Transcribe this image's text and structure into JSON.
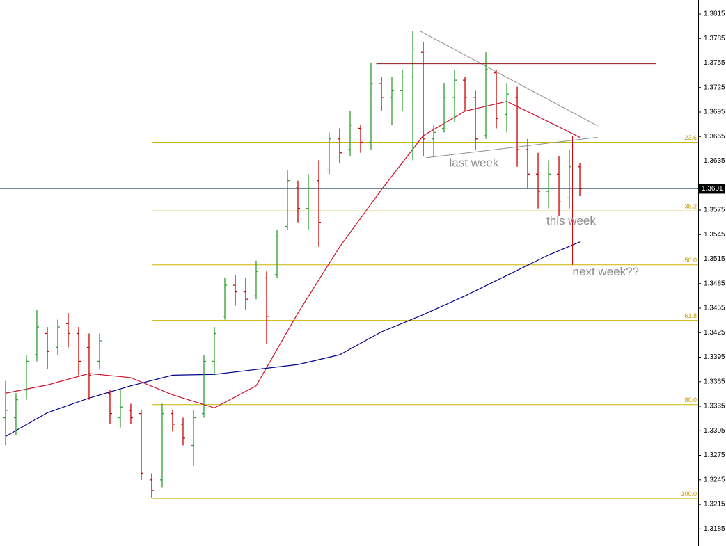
{
  "chart_data": {
    "type": "ohlc",
    "xlim": [
      -0.53,
      66.33
    ],
    "ylim": [
      1.3164,
      1.3832
    ],
    "yticks": [
      1.3185,
      1.3215,
      1.3245,
      1.3275,
      1.3305,
      1.3335,
      1.3365,
      1.3395,
      1.3425,
      1.3455,
      1.3485,
      1.3515,
      1.3545,
      1.3575,
      1.3635,
      1.3665,
      1.3695,
      1.3725,
      1.3755,
      1.3785,
      1.3815
    ],
    "up_color": "#2e9e2e",
    "down_color": "#cc0000",
    "bars": {
      "open": [
        1.3321,
        1.3321,
        1.3355,
        1.3398,
        1.3424,
        1.3407,
        1.3436,
        1.3424,
        1.3407,
        1.339,
        1.3351,
        1.3321,
        1.333,
        1.3326,
        1.3245,
        1.3245,
        1.3326,
        1.3313,
        1.3287,
        1.3326,
        1.339,
        1.3445,
        1.3483,
        1.3475,
        1.347,
        1.3492,
        1.3496,
        1.3555,
        1.3602,
        1.3577,
        1.3611,
        1.3624,
        1.3662,
        1.3649,
        1.3675,
        1.3658,
        1.373,
        1.3713,
        1.3721,
        1.3738,
        1.3768,
        1.3662,
        1.3675,
        1.3713,
        1.3734,
        1.3713,
        1.3666,
        1.3743,
        1.3692,
        1.3713,
        1.3649,
        1.3619,
        1.3598,
        1.3619,
        1.359,
        1.3628
      ],
      "high": [
        1.3366,
        1.3351,
        1.3398,
        1.3453,
        1.3432,
        1.3441,
        1.3449,
        1.3432,
        1.3424,
        1.3424,
        1.3355,
        1.3355,
        1.3338,
        1.333,
        1.3253,
        1.3338,
        1.333,
        1.3321,
        1.333,
        1.3398,
        1.3432,
        1.3492,
        1.3496,
        1.3492,
        1.3513,
        1.35,
        1.3551,
        1.3624,
        1.3611,
        1.3619,
        1.3636,
        1.367,
        1.3675,
        1.3696,
        1.3679,
        1.3755,
        1.3738,
        1.3738,
        1.3747,
        1.3794,
        1.3781,
        1.3679,
        1.373,
        1.3747,
        1.3738,
        1.3721,
        1.3768,
        1.3747,
        1.373,
        1.3726,
        1.3662,
        1.3645,
        1.3636,
        1.3641,
        1.3649,
        1.3632
      ],
      "low": [
        1.3287,
        1.33,
        1.3343,
        1.339,
        1.3381,
        1.3398,
        1.3407,
        1.3373,
        1.3343,
        1.3381,
        1.3313,
        1.3309,
        1.3313,
        1.3245,
        1.3223,
        1.3236,
        1.3304,
        1.3287,
        1.3262,
        1.3321,
        1.3373,
        1.3441,
        1.3458,
        1.3453,
        1.3466,
        1.3411,
        1.3492,
        1.3551,
        1.356,
        1.3551,
        1.353,
        1.3619,
        1.3632,
        1.3641,
        1.3645,
        1.3649,
        1.3696,
        1.3679,
        1.3696,
        1.3636,
        1.3641,
        1.3641,
        1.367,
        1.3683,
        1.3696,
        1.3649,
        1.3662,
        1.3675,
        1.367,
        1.3628,
        1.3601,
        1.3577,
        1.3577,
        1.3568,
        1.3577,
        1.3592
      ],
      "close": [
        1.333,
        1.3343,
        1.339,
        1.3432,
        1.3402,
        1.3432,
        1.3424,
        1.339,
        1.3373,
        1.3415,
        1.3326,
        1.3334,
        1.3321,
        1.3253,
        1.3232,
        1.3326,
        1.3313,
        1.3296,
        1.3321,
        1.339,
        1.3424,
        1.3483,
        1.3475,
        1.3466,
        1.35,
        1.3445,
        1.3543,
        1.3611,
        1.3577,
        1.3602,
        1.356,
        1.3662,
        1.3645,
        1.3679,
        1.3658,
        1.373,
        1.3713,
        1.3721,
        1.3738,
        1.3772,
        1.3662,
        1.367,
        1.3713,
        1.3734,
        1.3713,
        1.3662,
        1.3747,
        1.3687,
        1.3717,
        1.3649,
        1.3619,
        1.3598,
        1.3619,
        1.3585,
        1.3628,
        1.3601
      ]
    },
    "moving_averages": [
      {
        "color": "#d0102a",
        "x": [
          0,
          4,
          8,
          12,
          16,
          20,
          24,
          28,
          32,
          36,
          40,
          44,
          48,
          52,
          55
        ],
        "values": [
          1.3351,
          1.3361,
          1.3375,
          1.337,
          1.3349,
          1.3333,
          1.336,
          1.3449,
          1.353,
          1.36,
          1.3666,
          1.3696,
          1.3708,
          1.3683,
          1.3664
        ]
      },
      {
        "color": "#00008b",
        "x": [
          0,
          4,
          8,
          12,
          16,
          20,
          24,
          28,
          32,
          36,
          40,
          44,
          48,
          52,
          55
        ],
        "values": [
          1.3298,
          1.3327,
          1.3345,
          1.336,
          1.3373,
          1.3374,
          1.338,
          1.3386,
          1.3398,
          1.3426,
          1.3447,
          1.347,
          1.3495,
          1.352,
          1.3536
        ]
      }
    ],
    "current_price": 1.3601,
    "current_price_color": "#6f8aa0",
    "fibonacci": {
      "start": 14,
      "color": "#c8b400",
      "levels": [
        {
          "value": 1.3658,
          "label": "23.6"
        },
        {
          "value": 1.3574,
          "label": "38.2"
        },
        {
          "value": 1.3508,
          "label": "50.0"
        },
        {
          "value": 1.344,
          "label": "61.8"
        },
        {
          "value": 1.3337,
          "label": "80.0"
        },
        {
          "value": 1.3222,
          "label": "100.0"
        }
      ]
    },
    "lines": [
      {
        "color": "#8c8c8c",
        "x": [
          39.7,
          56.7
        ],
        "y": [
          1.3794,
          1.3678
        ]
      },
      {
        "color": "#8c8c8c",
        "x": [
          40.3,
          56.7
        ],
        "y": [
          1.3639,
          1.3664
        ]
      },
      {
        "color": "#8b1a1a",
        "x": [
          35.5,
          62.3
        ],
        "y": [
          1.3754,
          1.3754
        ]
      },
      {
        "color": "#cc0000",
        "x": [
          54.3,
          54.3
        ],
        "y": [
          1.3666,
          1.3508
        ]
      }
    ],
    "annotations": [
      {
        "text": "last week",
        "x": 42.5,
        "y": 1.3632
      },
      {
        "text": "this week",
        "x": 51.8,
        "y": 1.3561
      },
      {
        "text": "next week??",
        "x": 54.3,
        "y": 1.3499
      }
    ]
  }
}
